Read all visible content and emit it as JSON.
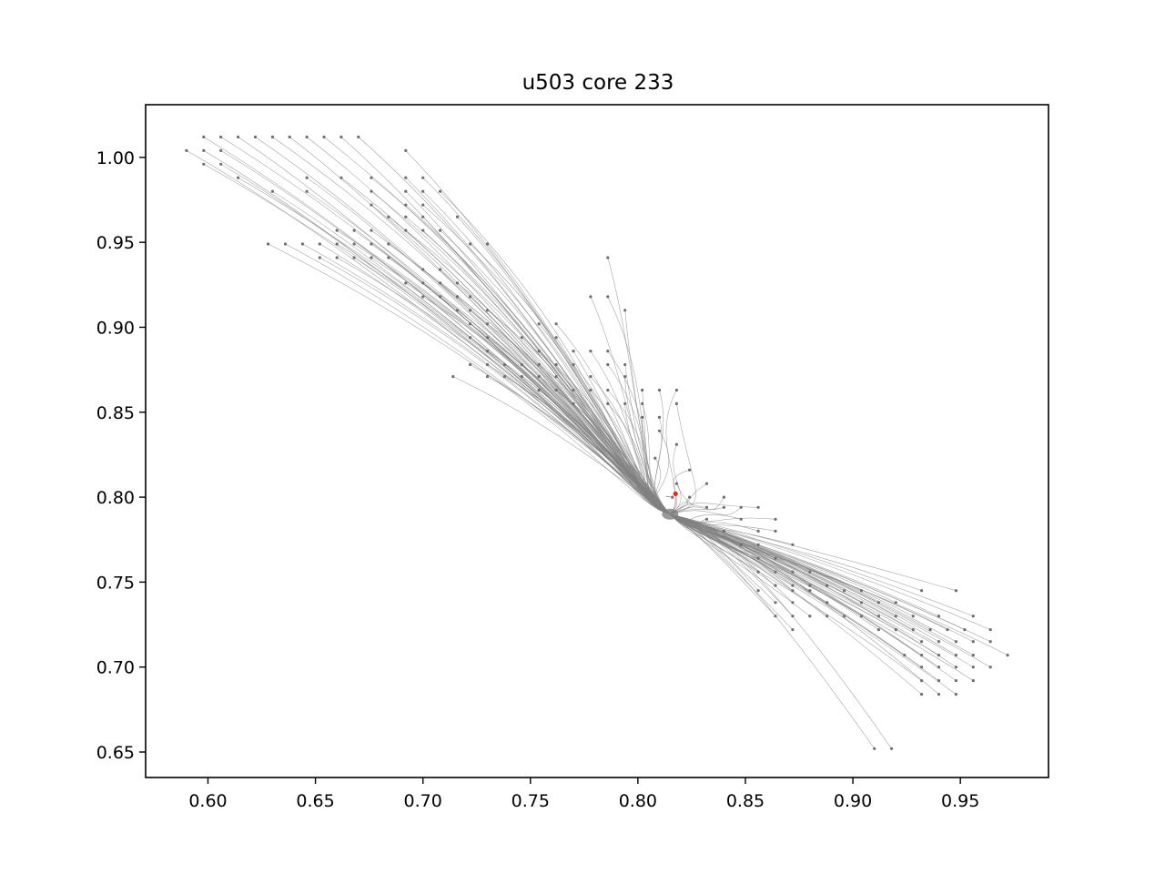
{
  "chart_data": {
    "type": "line",
    "title": "u503 core 233",
    "xlabel": "",
    "ylabel": "",
    "xlim": [
      0.571,
      0.991
    ],
    "ylim": [
      0.635,
      1.031
    ],
    "x_ticks": [
      "0.60",
      "0.65",
      "0.70",
      "0.75",
      "0.80",
      "0.85",
      "0.90",
      "0.95"
    ],
    "y_ticks": [
      "0.65",
      "0.70",
      "0.75",
      "0.80",
      "0.85",
      "0.90",
      "0.95",
      "1.00"
    ],
    "grid": false,
    "legend": "none",
    "colors": {
      "track": "#808080",
      "point": "#6e6e6e",
      "target": "#e8281c",
      "axes": "#000000"
    },
    "target": {
      "x": 0.8175,
      "y": 0.802
    },
    "convergence": {
      "x": 0.815,
      "y": 0.79
    },
    "start_points": [
      [
        0.59,
        1.004
      ],
      [
        0.598,
        1.012
      ],
      [
        0.606,
        1.012
      ],
      [
        0.614,
        1.012
      ],
      [
        0.622,
        1.012
      ],
      [
        0.63,
        1.012
      ],
      [
        0.638,
        1.012
      ],
      [
        0.646,
        1.012
      ],
      [
        0.654,
        1.012
      ],
      [
        0.662,
        1.012
      ],
      [
        0.67,
        1.012
      ],
      [
        0.598,
        1.004
      ],
      [
        0.606,
        1.004
      ],
      [
        0.598,
        0.996
      ],
      [
        0.606,
        0.996
      ],
      [
        0.692,
        1.004
      ],
      [
        0.614,
        0.988
      ],
      [
        0.646,
        0.988
      ],
      [
        0.662,
        0.988
      ],
      [
        0.676,
        0.988
      ],
      [
        0.692,
        0.988
      ],
      [
        0.7,
        0.988
      ],
      [
        0.63,
        0.98
      ],
      [
        0.646,
        0.98
      ],
      [
        0.676,
        0.98
      ],
      [
        0.692,
        0.98
      ],
      [
        0.7,
        0.98
      ],
      [
        0.708,
        0.98
      ],
      [
        0.676,
        0.972
      ],
      [
        0.692,
        0.972
      ],
      [
        0.7,
        0.972
      ],
      [
        0.684,
        0.965
      ],
      [
        0.692,
        0.965
      ],
      [
        0.7,
        0.965
      ],
      [
        0.716,
        0.965
      ],
      [
        0.66,
        0.957
      ],
      [
        0.668,
        0.957
      ],
      [
        0.676,
        0.957
      ],
      [
        0.692,
        0.957
      ],
      [
        0.7,
        0.957
      ],
      [
        0.708,
        0.957
      ],
      [
        0.628,
        0.949
      ],
      [
        0.636,
        0.949
      ],
      [
        0.644,
        0.949
      ],
      [
        0.652,
        0.949
      ],
      [
        0.66,
        0.949
      ],
      [
        0.668,
        0.949
      ],
      [
        0.676,
        0.949
      ],
      [
        0.684,
        0.949
      ],
      [
        0.722,
        0.949
      ],
      [
        0.73,
        0.949
      ],
      [
        0.652,
        0.941
      ],
      [
        0.66,
        0.941
      ],
      [
        0.668,
        0.941
      ],
      [
        0.676,
        0.941
      ],
      [
        0.684,
        0.941
      ],
      [
        0.786,
        0.941
      ],
      [
        0.7,
        0.934
      ],
      [
        0.708,
        0.934
      ],
      [
        0.692,
        0.926
      ],
      [
        0.7,
        0.926
      ],
      [
        0.708,
        0.926
      ],
      [
        0.716,
        0.926
      ],
      [
        0.7,
        0.918
      ],
      [
        0.708,
        0.918
      ],
      [
        0.716,
        0.918
      ],
      [
        0.722,
        0.918
      ],
      [
        0.778,
        0.918
      ],
      [
        0.786,
        0.918
      ],
      [
        0.716,
        0.91
      ],
      [
        0.722,
        0.91
      ],
      [
        0.73,
        0.91
      ],
      [
        0.794,
        0.91
      ],
      [
        0.722,
        0.902
      ],
      [
        0.73,
        0.902
      ],
      [
        0.754,
        0.902
      ],
      [
        0.762,
        0.902
      ],
      [
        0.722,
        0.894
      ],
      [
        0.73,
        0.894
      ],
      [
        0.746,
        0.894
      ],
      [
        0.762,
        0.894
      ],
      [
        0.73,
        0.886
      ],
      [
        0.754,
        0.886
      ],
      [
        0.77,
        0.886
      ],
      [
        0.778,
        0.886
      ],
      [
        0.786,
        0.886
      ],
      [
        0.722,
        0.878
      ],
      [
        0.73,
        0.878
      ],
      [
        0.738,
        0.878
      ],
      [
        0.746,
        0.878
      ],
      [
        0.754,
        0.878
      ],
      [
        0.762,
        0.878
      ],
      [
        0.77,
        0.878
      ],
      [
        0.786,
        0.878
      ],
      [
        0.794,
        0.878
      ],
      [
        0.73,
        0.871
      ],
      [
        0.738,
        0.871
      ],
      [
        0.746,
        0.871
      ],
      [
        0.754,
        0.871
      ],
      [
        0.762,
        0.871
      ],
      [
        0.714,
        0.871
      ],
      [
        0.778,
        0.871
      ],
      [
        0.794,
        0.871
      ],
      [
        0.754,
        0.863
      ],
      [
        0.762,
        0.863
      ],
      [
        0.77,
        0.863
      ],
      [
        0.778,
        0.863
      ],
      [
        0.786,
        0.863
      ],
      [
        0.802,
        0.863
      ],
      [
        0.81,
        0.863
      ],
      [
        0.818,
        0.863
      ],
      [
        0.77,
        0.855
      ],
      [
        0.786,
        0.855
      ],
      [
        0.794,
        0.855
      ],
      [
        0.802,
        0.855
      ],
      [
        0.818,
        0.855
      ],
      [
        0.802,
        0.847
      ],
      [
        0.81,
        0.847
      ],
      [
        0.81,
        0.839
      ],
      [
        0.818,
        0.831
      ],
      [
        0.808,
        0.823
      ],
      [
        0.824,
        0.816
      ],
      [
        0.832,
        0.808
      ],
      [
        0.818,
        0.808
      ],
      [
        0.816,
        0.8
      ],
      [
        0.824,
        0.8
      ],
      [
        0.84,
        0.8
      ],
      [
        0.832,
        0.794
      ],
      [
        0.84,
        0.794
      ],
      [
        0.848,
        0.794
      ],
      [
        0.856,
        0.794
      ],
      [
        0.832,
        0.787
      ],
      [
        0.848,
        0.787
      ],
      [
        0.864,
        0.787
      ],
      [
        0.84,
        0.78
      ],
      [
        0.856,
        0.78
      ],
      [
        0.864,
        0.78
      ],
      [
        0.848,
        0.772
      ],
      [
        0.856,
        0.772
      ],
      [
        0.872,
        0.772
      ],
      [
        0.856,
        0.764
      ],
      [
        0.864,
        0.764
      ],
      [
        0.856,
        0.756
      ],
      [
        0.864,
        0.756
      ],
      [
        0.872,
        0.756
      ],
      [
        0.88,
        0.756
      ],
      [
        0.864,
        0.748
      ],
      [
        0.872,
        0.748
      ],
      [
        0.88,
        0.748
      ],
      [
        0.888,
        0.748
      ],
      [
        0.856,
        0.745
      ],
      [
        0.872,
        0.745
      ],
      [
        0.88,
        0.745
      ],
      [
        0.896,
        0.745
      ],
      [
        0.904,
        0.745
      ],
      [
        0.864,
        0.738
      ],
      [
        0.872,
        0.738
      ],
      [
        0.888,
        0.738
      ],
      [
        0.904,
        0.738
      ],
      [
        0.912,
        0.738
      ],
      [
        0.92,
        0.738
      ],
      [
        0.932,
        0.745
      ],
      [
        0.948,
        0.745
      ],
      [
        0.864,
        0.73
      ],
      [
        0.872,
        0.73
      ],
      [
        0.88,
        0.73
      ],
      [
        0.888,
        0.73
      ],
      [
        0.896,
        0.73
      ],
      [
        0.904,
        0.73
      ],
      [
        0.912,
        0.73
      ],
      [
        0.92,
        0.73
      ],
      [
        0.928,
        0.73
      ],
      [
        0.94,
        0.73
      ],
      [
        0.956,
        0.73
      ],
      [
        0.872,
        0.722
      ],
      [
        0.912,
        0.722
      ],
      [
        0.92,
        0.722
      ],
      [
        0.928,
        0.722
      ],
      [
        0.936,
        0.722
      ],
      [
        0.944,
        0.722
      ],
      [
        0.952,
        0.722
      ],
      [
        0.964,
        0.722
      ],
      [
        0.932,
        0.715
      ],
      [
        0.94,
        0.715
      ],
      [
        0.948,
        0.715
      ],
      [
        0.956,
        0.715
      ],
      [
        0.964,
        0.715
      ],
      [
        0.972,
        0.707
      ],
      [
        0.924,
        0.707
      ],
      [
        0.932,
        0.707
      ],
      [
        0.94,
        0.707
      ],
      [
        0.948,
        0.707
      ],
      [
        0.956,
        0.707
      ],
      [
        0.932,
        0.7
      ],
      [
        0.94,
        0.7
      ],
      [
        0.948,
        0.7
      ],
      [
        0.956,
        0.7
      ],
      [
        0.964,
        0.7
      ],
      [
        0.932,
        0.692
      ],
      [
        0.94,
        0.692
      ],
      [
        0.948,
        0.692
      ],
      [
        0.956,
        0.692
      ],
      [
        0.932,
        0.684
      ],
      [
        0.94,
        0.684
      ],
      [
        0.948,
        0.684
      ],
      [
        0.91,
        0.652
      ],
      [
        0.918,
        0.652
      ]
    ]
  }
}
